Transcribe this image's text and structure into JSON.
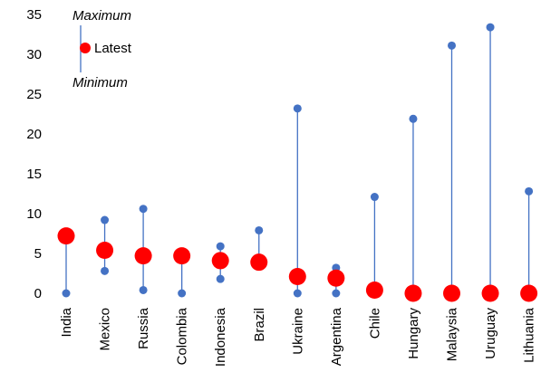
{
  "chart_data": {
    "type": "scatter",
    "categories": [
      "India",
      "Mexico",
      "Russia",
      "Colombia",
      "Indonesia",
      "Brazil",
      "Ukraine",
      "Argentina",
      "Chile",
      "Hungary",
      "Malaysia",
      "Uruguay",
      "Lithuania"
    ],
    "series": [
      {
        "name": "Maximum",
        "values": [
          7.2,
          9.2,
          10.6,
          4.8,
          5.9,
          7.9,
          23.2,
          3.2,
          12.1,
          21.9,
          31.1,
          33.4,
          12.8
        ]
      },
      {
        "name": "Minimum",
        "values": [
          0.0,
          2.8,
          0.4,
          0.0,
          1.8,
          3.7,
          0.0,
          0.0,
          0.4,
          0.0,
          0.0,
          0.0,
          0.0
        ]
      },
      {
        "name": "Latest",
        "values": [
          7.2,
          5.4,
          4.7,
          4.7,
          4.1,
          3.9,
          2.1,
          1.9,
          0.4,
          0.0,
          0.0,
          0.0,
          0.0
        ]
      }
    ],
    "yticks": [
      "0",
      "5",
      "10",
      "15",
      "20",
      "25",
      "30",
      "35"
    ],
    "ylim": [
      0,
      35
    ],
    "legend": {
      "max_label": "Maximum",
      "min_label": "Minimum",
      "latest_label": "Latest",
      "position": "top-left"
    },
    "grid": false,
    "colors": {
      "range_line": "#4472C4",
      "range_dot": "#4472C4",
      "latest": "#FF0000"
    }
  }
}
